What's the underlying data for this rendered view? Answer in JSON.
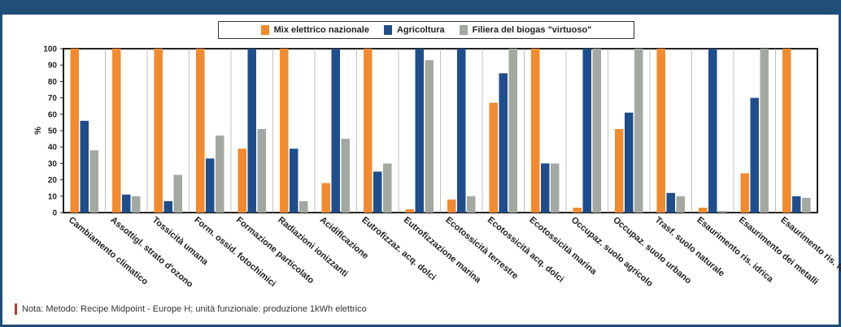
{
  "chart_data": {
    "type": "bar",
    "ylabel": "%",
    "ylim": [
      0,
      100
    ],
    "yticks": [
      0,
      10,
      20,
      30,
      40,
      50,
      60,
      70,
      80,
      90,
      100
    ],
    "categories": [
      "Cambiamento climatico",
      "Assottigl. strato d'ozono",
      "Tossicità umana",
      "Form. ossid. fotochimici",
      "Formazione particolato",
      "Radiazioni ionizzanti",
      "Acidificazione",
      "Eutrofizzaz. acq. dolci",
      "Eutrofizzazione marina",
      "Ecotossicità terrestre",
      "Ecotossicità acq. dolci",
      "Ecotossicità marina",
      "Occupaz. suolo agricolo",
      "Occupaz. suolo urbano",
      "Trasf. suolo naturale",
      "Esaurimento ris. idrica",
      "Esaurimento dei metalli",
      "Esaurimento ris. fossili"
    ],
    "series": [
      {
        "name": "Mix elettrico nazionale",
        "color": "#f28a2e",
        "values": [
          100,
          100,
          100,
          100,
          39,
          100,
          18,
          100,
          2,
          8,
          67,
          100,
          3,
          51,
          100,
          3,
          24,
          100
        ]
      },
      {
        "name": "Agricoltura",
        "color": "#1f4e8c",
        "values": [
          56,
          11,
          7,
          33,
          100,
          39,
          100,
          25,
          100,
          100,
          85,
          30,
          100,
          61,
          12,
          100,
          70,
          10
        ]
      },
      {
        "name": "Filiera del biogas \"virtuoso\"",
        "color": "#a3a9a1",
        "values": [
          38,
          10,
          23,
          47,
          51,
          7,
          45,
          30,
          93,
          10,
          100,
          30,
          100,
          100,
          10,
          1,
          100,
          9
        ]
      }
    ],
    "grid": false,
    "legend_position": "top"
  },
  "note": {
    "text": "Nota: Metodo: Recipe Midpoint - Europe H; unità funzionale: produzione 1kWh elettrico"
  }
}
